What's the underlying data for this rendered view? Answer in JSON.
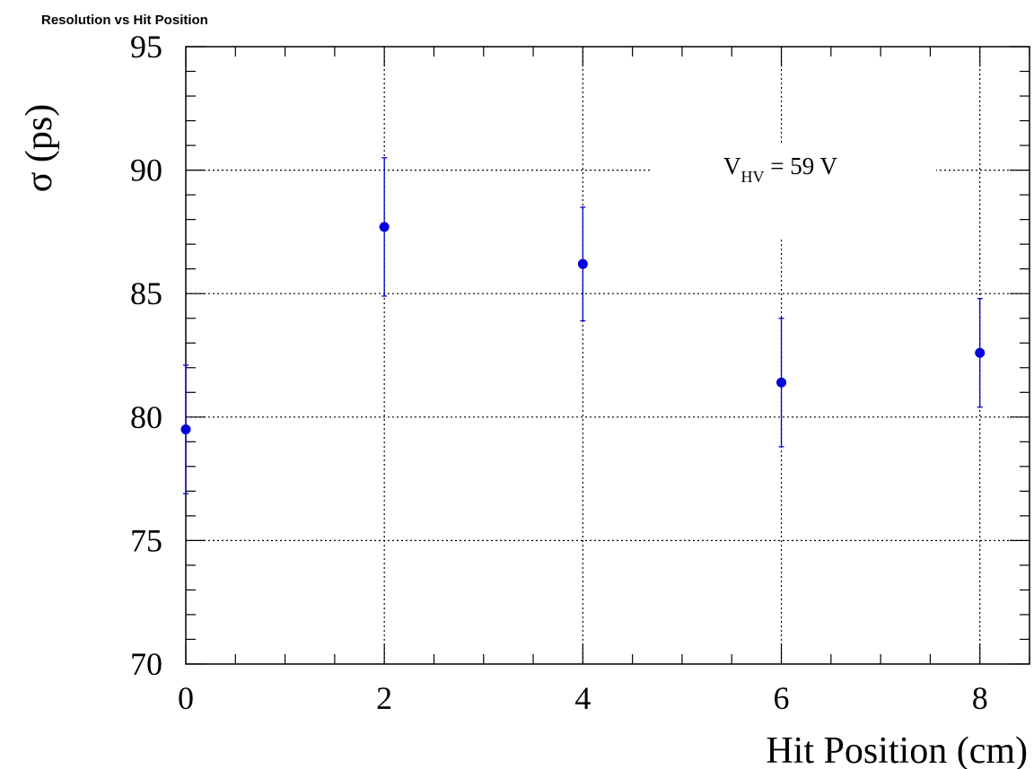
{
  "chart_data": {
    "type": "scatter",
    "title": "Resolution vs Hit Position",
    "xlabel": "Hit Position (cm)",
    "ylabel": "σ (ps)",
    "xlim": [
      0,
      8.5
    ],
    "ylim": [
      70,
      95
    ],
    "x_ticks": [
      "0",
      "2",
      "4",
      "6",
      "8"
    ],
    "y_ticks": [
      "70",
      "75",
      "80",
      "85",
      "90",
      "95"
    ],
    "grid": true,
    "annotation": {
      "main": "V",
      "subscript": "HV",
      "rest": " = 59 V"
    },
    "series": [
      {
        "color": "#0000dd",
        "x": [
          0,
          2,
          4,
          6,
          8
        ],
        "y": [
          79.5,
          87.7,
          86.2,
          81.4,
          82.6
        ],
        "yerr": [
          2.6,
          2.8,
          2.3,
          2.6,
          2.2
        ]
      }
    ]
  }
}
